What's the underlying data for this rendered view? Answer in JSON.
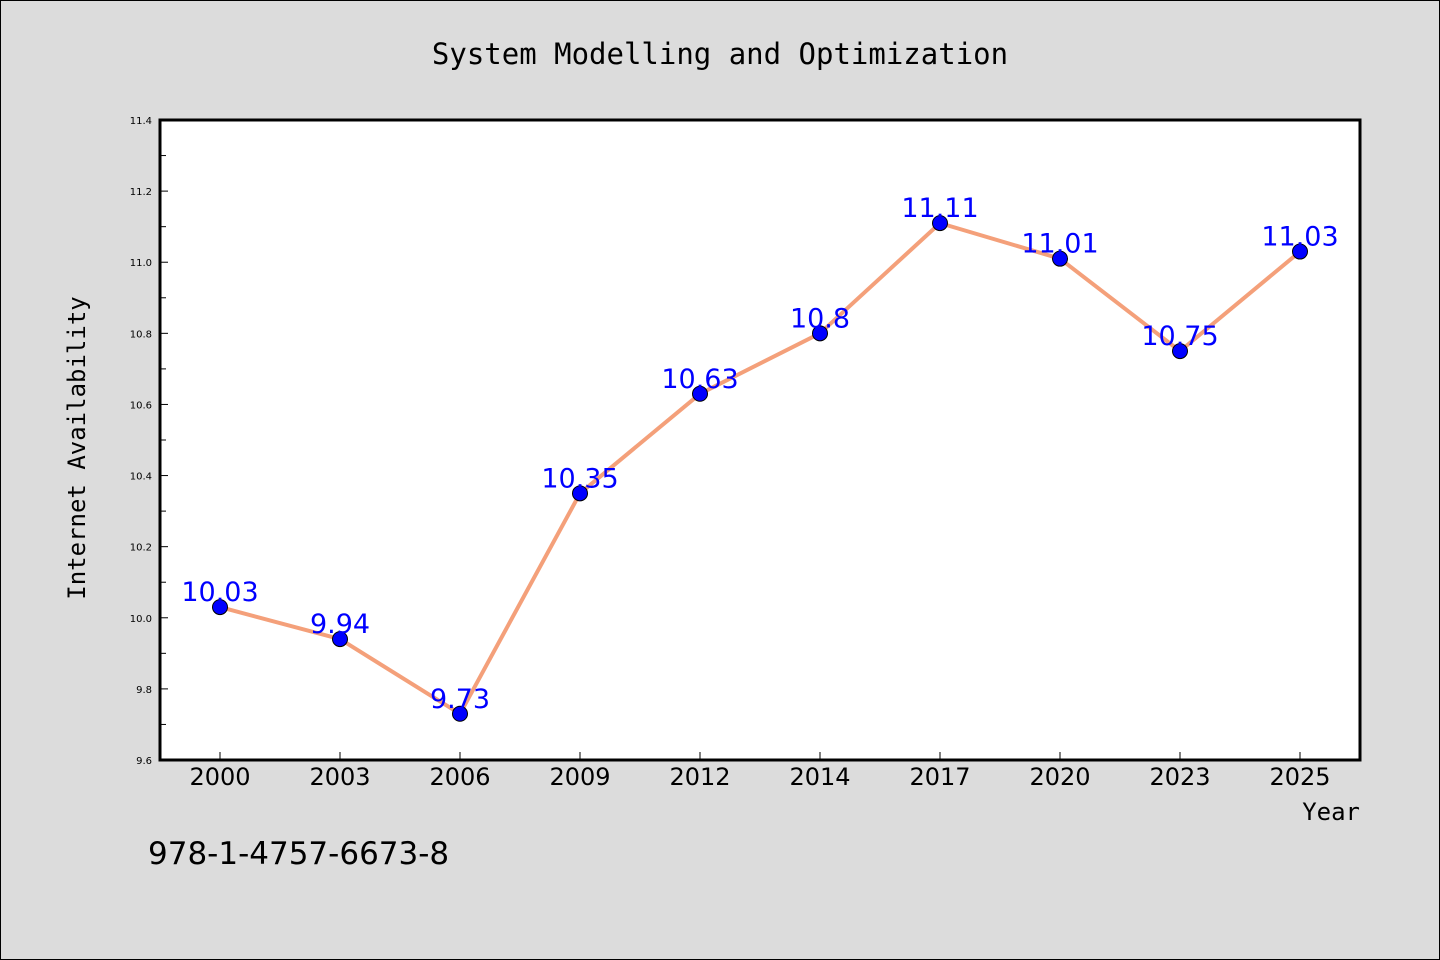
{
  "chart_data": {
    "type": "line",
    "title": "System Modelling and Optimization",
    "xlabel": "Year",
    "ylabel": "Internet Availability",
    "categories": [
      "2000",
      "2003",
      "2006",
      "2009",
      "2012",
      "2014",
      "2017",
      "2020",
      "2023",
      "2025"
    ],
    "series": [
      {
        "values": [
          10.03,
          9.94,
          9.73,
          10.35,
          10.63,
          10.8,
          11.11,
          11.01,
          10.75,
          11.03
        ]
      }
    ],
    "data_labels": [
      "10.03",
      "9.94",
      "9.73",
      "10.35",
      "10.63",
      "10.8",
      "11.11",
      "11.01",
      "10.75",
      "11.03"
    ],
    "ylim": [
      9.6,
      11.4
    ],
    "yticks": [
      "9.6",
      "9.8",
      "10.0",
      "10.2",
      "10.4",
      "10.6",
      "10.8",
      "11.0",
      "11.2",
      "11.4"
    ],
    "grid": false,
    "colors": {
      "line": "#f4a07a",
      "marker": "#0000ff",
      "label": "#0000ff",
      "background": "#dcdcdc",
      "plot_background": "#ffffff"
    }
  },
  "footer_text": "978-1-4757-6673-8"
}
